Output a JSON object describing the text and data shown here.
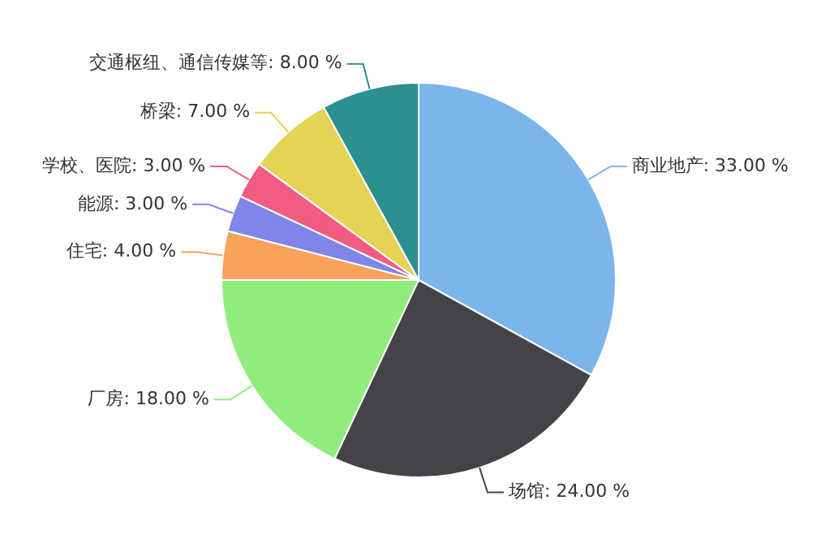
{
  "chart_data": {
    "type": "pie",
    "categories": [
      "商业地产",
      "场馆",
      "厂房",
      "住宅",
      "能源",
      "学校、医院",
      "桥梁",
      "交通枢纽、通信传媒等"
    ],
    "values": [
      33,
      24,
      18,
      4,
      3,
      3,
      7,
      8
    ],
    "value_labels": [
      "33.00 %",
      "24.00 %",
      "18.00 %",
      "4.00 %",
      "3.00 %",
      "3.00 %",
      "7.00 %",
      "8.00 %"
    ],
    "colors": [
      "#7cb5ec",
      "#434348",
      "#90ed7d",
      "#f7a35c",
      "#8085e9",
      "#f15c80",
      "#e4d354",
      "#2b908f"
    ],
    "legend": false
  }
}
